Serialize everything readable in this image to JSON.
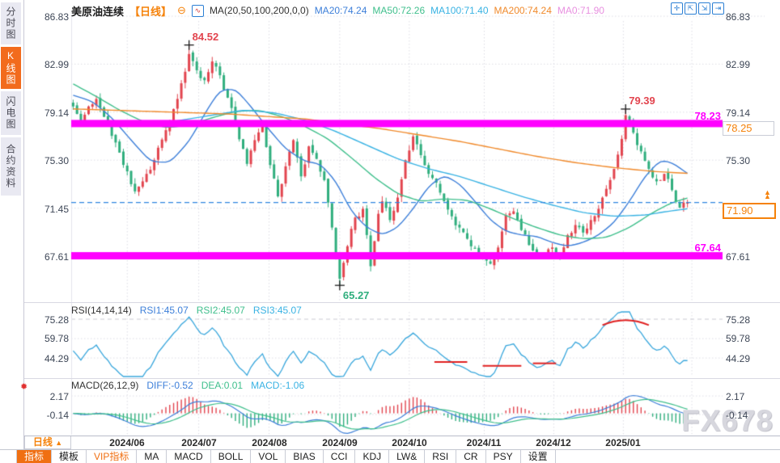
{
  "header": {
    "title": "美原油连续",
    "period_tag": "【日线】",
    "collapse_icon": "⊖",
    "ma_settings": "MA(20,50,100,200,0,0)",
    "ma_values": [
      {
        "label": "MA20:74.24",
        "color": "#3d7fd9"
      },
      {
        "label": "MA50:72.26",
        "color": "#3fbf8c"
      },
      {
        "label": "MA100:71.40",
        "color": "#38b2e3"
      },
      {
        "label": "MA200:74.24",
        "color": "#f0892a"
      },
      {
        "label": "MA0:71.90",
        "color": "#e890e0"
      }
    ],
    "window_icons": [
      {
        "name": "pan-tool-icon",
        "glyph": "✛"
      },
      {
        "name": "y-axis-scale-icon",
        "glyph": "⇱"
      },
      {
        "name": "x-axis-scale-icon",
        "glyph": "⇲"
      },
      {
        "name": "jump-to-latest-icon",
        "glyph": "⇥"
      }
    ]
  },
  "sidebar": {
    "items": [
      {
        "label": "分时图",
        "active": false
      },
      {
        "label": "K线图",
        "active": true
      },
      {
        "label": "闪电图",
        "active": false
      },
      {
        "label": "合约资料",
        "active": false
      }
    ]
  },
  "chart_data": [
    {
      "type": "candlestick",
      "title": "美原油连续 日线",
      "x_labels": [
        "2024/06",
        "2024/07",
        "2024/08",
        "2024/09",
        "2024/10",
        "2024/11",
        "2024/12",
        "2025/01"
      ],
      "x_label_indices": [
        14,
        32.5,
        50.7,
        69,
        87,
        106.4,
        124.4,
        142.4
      ],
      "n_candles": 160,
      "render_seed": 11,
      "first_open": 79.9,
      "y_tick_labels": [
        "86.83",
        "82.99",
        "79.14",
        "75.30",
        "71.45",
        "67.61"
      ],
      "y_tick_values": [
        86.83,
        82.99,
        79.14,
        75.3,
        71.45,
        67.61
      ],
      "up_color": "#e2444e",
      "down_color": "#2fae7d",
      "close_anchors": [
        [
          0,
          79.6
        ],
        [
          2,
          78.3
        ],
        [
          4,
          79.6
        ],
        [
          6,
          80.2
        ],
        [
          9,
          78.2
        ],
        [
          12,
          75.9
        ],
        [
          14,
          74.4
        ],
        [
          16,
          72.8
        ],
        [
          18,
          73.6
        ],
        [
          21,
          75.3
        ],
        [
          24,
          77.7
        ],
        [
          27,
          80.2
        ],
        [
          30,
          83.8
        ],
        [
          32,
          82.5
        ],
        [
          34,
          81.7
        ],
        [
          36,
          83.2
        ],
        [
          38,
          82.1
        ],
        [
          40,
          80.3
        ],
        [
          42,
          78.1
        ],
        [
          44,
          76.2
        ],
        [
          45,
          75.0
        ],
        [
          47,
          76.9
        ],
        [
          49,
          78.2
        ],
        [
          51,
          74.9
        ],
        [
          53,
          72.4
        ],
        [
          55,
          74.8
        ],
        [
          57,
          76.9
        ],
        [
          59,
          74.0
        ],
        [
          61,
          76.4
        ],
        [
          63,
          75.4
        ],
        [
          65,
          73.7
        ],
        [
          66,
          71.9
        ],
        [
          67,
          69.9
        ],
        [
          68,
          67.5
        ],
        [
          69,
          65.8
        ],
        [
          71,
          68.4
        ],
        [
          73,
          70.7
        ],
        [
          75,
          71.4
        ],
        [
          76,
          69.3
        ],
        [
          77,
          66.8
        ],
        [
          79,
          71.0
        ],
        [
          80,
          72.0
        ],
        [
          82,
          70.5
        ],
        [
          84,
          72.3
        ],
        [
          86,
          75.3
        ],
        [
          88,
          77.2
        ],
        [
          90,
          75.7
        ],
        [
          92,
          74.2
        ],
        [
          94,
          73.5
        ],
        [
          96,
          72.0
        ],
        [
          98,
          70.8
        ],
        [
          100,
          69.9
        ],
        [
          102,
          69.0
        ],
        [
          104,
          68.2
        ],
        [
          106,
          67.5
        ],
        [
          108,
          67.0
        ],
        [
          110,
          68.3
        ],
        [
          112,
          70.9
        ],
        [
          114,
          71.2
        ],
        [
          116,
          69.7
        ],
        [
          118,
          68.5
        ],
        [
          120,
          67.6
        ],
        [
          122,
          67.9
        ],
        [
          124,
          68.3
        ],
        [
          126,
          67.6
        ],
        [
          128,
          69.3
        ],
        [
          130,
          70.1
        ],
        [
          132,
          69.5
        ],
        [
          134,
          70.5
        ],
        [
          136,
          71.4
        ],
        [
          138,
          73.0
        ],
        [
          140,
          74.6
        ],
        [
          142,
          77.0
        ],
        [
          143,
          78.9
        ],
        [
          145,
          77.5
        ],
        [
          147,
          76.0
        ],
        [
          149,
          74.6
        ],
        [
          151,
          73.6
        ],
        [
          153,
          74.2
        ],
        [
          155,
          72.9
        ],
        [
          157,
          71.5
        ],
        [
          159,
          71.9
        ]
      ],
      "marked_points": [
        {
          "i": 30,
          "price": 84.52,
          "label": "84.52",
          "kind": "high"
        },
        {
          "i": 69,
          "price": 65.27,
          "label": "65.27",
          "kind": "low"
        },
        {
          "i": 143,
          "price": 79.39,
          "label": "79.39",
          "kind": "high"
        }
      ],
      "bands": [
        {
          "value": 78.23,
          "label": "78.23"
        },
        {
          "value": 67.64,
          "label": "67.64"
        }
      ],
      "band_color": "#ff00ff",
      "last_price": {
        "value": 71.9,
        "label": "71.90"
      },
      "alert_tag": {
        "value": 78.25,
        "label": "78.25"
      },
      "ma_series": [
        {
          "name": "MA20",
          "color": "#3d7fd9",
          "anchors": [
            [
              0,
              80.5
            ],
            [
              5,
              80.0
            ],
            [
              10,
              78.7
            ],
            [
              15,
              76.9
            ],
            [
              20,
              75.2
            ],
            [
              25,
              75.1
            ],
            [
              30,
              76.8
            ],
            [
              35,
              79.5
            ],
            [
              38,
              80.9
            ],
            [
              42,
              81.0
            ],
            [
              46,
              79.6
            ],
            [
              50,
              78.0
            ],
            [
              55,
              76.2
            ],
            [
              60,
              75.2
            ],
            [
              64,
              75.0
            ],
            [
              68,
              73.6
            ],
            [
              72,
              71.2
            ],
            [
              76,
              69.9
            ],
            [
              80,
              69.3
            ],
            [
              84,
              69.9
            ],
            [
              88,
              71.4
            ],
            [
              92,
              73.2
            ],
            [
              96,
              74.1
            ],
            [
              100,
              73.4
            ],
            [
              104,
              72.0
            ],
            [
              108,
              70.5
            ],
            [
              112,
              69.6
            ],
            [
              116,
              69.3
            ],
            [
              120,
              69.2
            ],
            [
              124,
              68.7
            ],
            [
              128,
              68.4
            ],
            [
              132,
              68.7
            ],
            [
              136,
              69.3
            ],
            [
              140,
              70.3
            ],
            [
              144,
              72.0
            ],
            [
              148,
              74.0
            ],
            [
              152,
              75.3
            ],
            [
              155,
              75.1
            ],
            [
              159,
              74.24
            ]
          ]
        },
        {
          "name": "MA50",
          "color": "#3fbf8c",
          "anchors": [
            [
              0,
              81.4
            ],
            [
              6,
              80.4
            ],
            [
              12,
              79.3
            ],
            [
              18,
              78.4
            ],
            [
              24,
              77.9
            ],
            [
              30,
              78.1
            ],
            [
              36,
              78.7
            ],
            [
              42,
              79.2
            ],
            [
              48,
              79.3
            ],
            [
              54,
              78.8
            ],
            [
              60,
              78.0
            ],
            [
              66,
              77.0
            ],
            [
              72,
              75.5
            ],
            [
              78,
              73.9
            ],
            [
              84,
              72.6
            ],
            [
              90,
              72.0
            ],
            [
              96,
              72.2
            ],
            [
              102,
              72.1
            ],
            [
              108,
              71.4
            ],
            [
              114,
              70.6
            ],
            [
              120,
              69.9
            ],
            [
              126,
              69.3
            ],
            [
              132,
              69.0
            ],
            [
              138,
              69.1
            ],
            [
              144,
              69.9
            ],
            [
              150,
              71.1
            ],
            [
              155,
              71.9
            ],
            [
              159,
              72.26
            ]
          ]
        },
        {
          "name": "MA100",
          "color": "#38b2e3",
          "anchors": [
            [
              0,
              78.3
            ],
            [
              12,
              78.1
            ],
            [
              24,
              78.3
            ],
            [
              36,
              78.9
            ],
            [
              44,
              79.3
            ],
            [
              52,
              79.1
            ],
            [
              60,
              78.5
            ],
            [
              68,
              77.6
            ],
            [
              76,
              76.5
            ],
            [
              84,
              75.4
            ],
            [
              92,
              74.6
            ],
            [
              100,
              74.0
            ],
            [
              108,
              73.2
            ],
            [
              116,
              72.4
            ],
            [
              124,
              71.7
            ],
            [
              132,
              71.1
            ],
            [
              140,
              70.8
            ],
            [
              148,
              70.9
            ],
            [
              154,
              71.2
            ],
            [
              159,
              71.4
            ]
          ]
        },
        {
          "name": "MA200",
          "color": "#f0892a",
          "anchors": [
            [
              0,
              79.4
            ],
            [
              20,
              79.2
            ],
            [
              40,
              79.0
            ],
            [
              60,
              78.6
            ],
            [
              70,
              78.2
            ],
            [
              80,
              77.8
            ],
            [
              90,
              77.3
            ],
            [
              100,
              76.8
            ],
            [
              110,
              76.2
            ],
            [
              120,
              75.6
            ],
            [
              130,
              75.1
            ],
            [
              140,
              74.7
            ],
            [
              150,
              74.4
            ],
            [
              159,
              74.24
            ]
          ]
        }
      ]
    },
    {
      "type": "line",
      "name": "RSI",
      "params_label": "RSI(14,14,14)",
      "legend": [
        {
          "label": "RSI1:45.07",
          "color": "#3d7fd9"
        },
        {
          "label": "RSI2:45.07",
          "color": "#3fbf8c"
        },
        {
          "label": "RSI3:45.07",
          "color": "#38b2e3"
        }
      ],
      "y_tick_labels": [
        "75.28",
        "59.78",
        "44.29"
      ],
      "y_tick_values": [
        75.28,
        59.78,
        44.29
      ],
      "period": 14,
      "line_color": "#38a6dc",
      "mark_color": "#e02020",
      "red_marks": [
        {
          "shape": "line",
          "i1": 93.5,
          "i2": 102,
          "value": 41
        },
        {
          "shape": "line",
          "i1": 106,
          "i2": 116,
          "value": 38
        },
        {
          "shape": "line",
          "i1": 119,
          "i2": 125,
          "value": 40
        },
        {
          "shape": "arc",
          "i1": 137,
          "i2": 149,
          "value": 70.5,
          "peak": 74.5
        }
      ]
    },
    {
      "type": "macd",
      "params_label": "MACD(26,12,9)",
      "legend": [
        {
          "label": "DIFF:-0.52",
          "color": "#3d7fd9"
        },
        {
          "label": "DEA:0.01",
          "color": "#3fbf8c"
        },
        {
          "label": "MACD:-1.06",
          "color": "#38b2e3"
        }
      ],
      "y_tick_labels": [
        "2.17",
        "-0.14"
      ],
      "y_tick_values": [
        2.17,
        -0.14
      ],
      "colors": {
        "diff": "#3d7fd9",
        "dea": "#3fbf8c",
        "bar_up": "#e2444e",
        "bar_dn": "#2fae7d"
      }
    }
  ],
  "ui": {
    "watermark": "FX678",
    "period_selector": {
      "label": "日线",
      "arrow": "▲"
    },
    "up_arrows_glyph": "▲▲",
    "toolbar": {
      "tabs": [
        {
          "label": "指标",
          "state": "active"
        },
        {
          "label": "模板",
          "state": ""
        },
        {
          "label": "VIP指标",
          "state": "vip"
        },
        {
          "label": "MA",
          "state": ""
        },
        {
          "label": "MACD",
          "state": ""
        },
        {
          "label": "BOLL",
          "state": ""
        },
        {
          "label": "VOL",
          "state": ""
        },
        {
          "label": "BIAS",
          "state": ""
        },
        {
          "label": "CCI",
          "state": ""
        },
        {
          "label": "KDJ",
          "state": ""
        },
        {
          "label": "LW&",
          "state": ""
        },
        {
          "label": "RSI",
          "state": ""
        },
        {
          "label": "CR",
          "state": ""
        },
        {
          "label": "PSY",
          "state": ""
        },
        {
          "label": "设置",
          "state": ""
        }
      ]
    }
  }
}
